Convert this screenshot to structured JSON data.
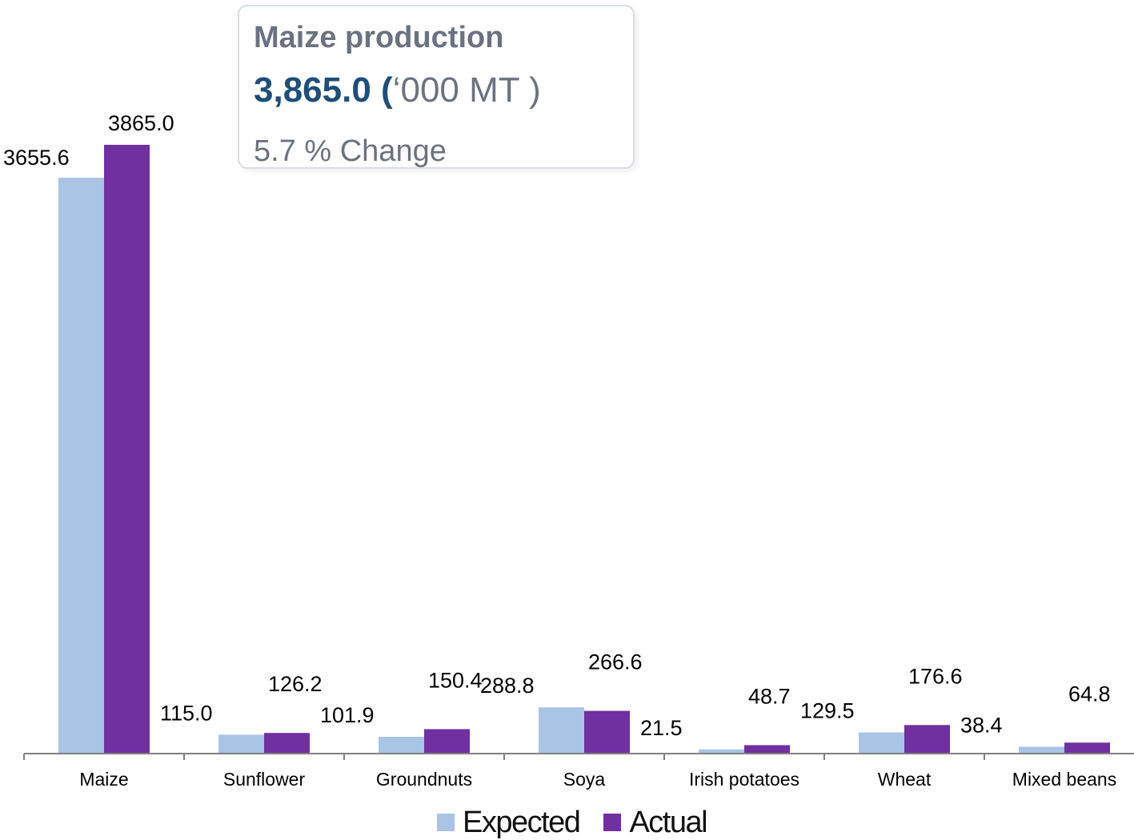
{
  "tooltip": {
    "title": "Maize production",
    "value": "3,865.0",
    "open_paren": " (",
    "unit": "‘000 MT )",
    "change": "5.7 % Change"
  },
  "colors": {
    "expected": "#a9c4e4",
    "actual": "#7030a0",
    "axis": "#808080",
    "tooltip_value": "#1f4e79"
  },
  "chart_data": {
    "type": "bar",
    "categories": [
      "Maize",
      "Sunflower",
      "Groundnuts",
      "Soya",
      "Irish potatoes",
      "Wheat",
      "Mixed beans"
    ],
    "series": [
      {
        "name": "Expected",
        "values": [
          3655.6,
          115.0,
          101.9,
          288.8,
          21.5,
          129.5,
          38.4
        ]
      },
      {
        "name": "Actual",
        "values": [
          3865.0,
          126.2,
          150.4,
          266.6,
          48.7,
          176.6,
          64.8
        ]
      }
    ],
    "value_labels": [
      [
        "3655.6",
        "115.0",
        "101.9",
        "288.8",
        "21.5",
        "129.5",
        "38.4"
      ],
      [
        "3865.0",
        "126.2",
        "150.4",
        "266.6",
        "48.7",
        "176.6",
        "64.8"
      ]
    ],
    "legend": "bottom",
    "grid": false,
    "ylim": [
      0,
      3865
    ]
  }
}
